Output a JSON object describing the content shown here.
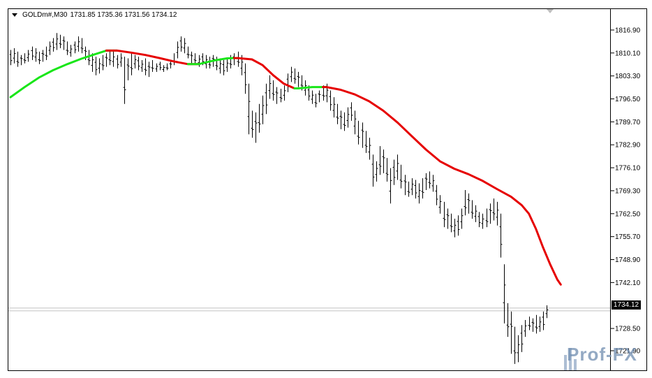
{
  "header": {
    "symbol": "GOLDm#,M30",
    "ohlc": "1731.85 1735.36 1731.56 1734.12"
  },
  "price_tag": "1734.12",
  "watermark": "Prof-FX",
  "colors": {
    "ma_up": "#19e619",
    "ma_down": "#e60000",
    "bars": "#000000",
    "current_line": "#c0c0c0",
    "background": "#ffffff"
  },
  "chart_data": {
    "type": "line",
    "title": "",
    "xlabel": "",
    "ylabel": "",
    "ylim": [
      1716.1,
      1823.1
    ],
    "yticks": [
      "1816.90",
      "1810.10",
      "1803.30",
      "1796.50",
      "1789.70",
      "1782.90",
      "1776.10",
      "1769.30",
      "1762.50",
      "1755.70",
      "1748.90",
      "1742.10",
      "1728.50",
      "1721.90"
    ],
    "current_price": 1734.12,
    "grid": false,
    "ohlc_bars": [
      {
        "h": 1811.0,
        "l": 1806.5
      },
      {
        "h": 1811.5,
        "l": 1807.0
      },
      {
        "h": 1810.5,
        "l": 1806.0
      },
      {
        "h": 1809.5,
        "l": 1806.5
      },
      {
        "h": 1810.0,
        "l": 1807.0
      },
      {
        "h": 1811.0,
        "l": 1807.5
      },
      {
        "h": 1812.0,
        "l": 1808.0
      },
      {
        "h": 1811.5,
        "l": 1807.5
      },
      {
        "h": 1810.5,
        "l": 1806.8
      },
      {
        "h": 1811.0,
        "l": 1807.5
      },
      {
        "h": 1812.0,
        "l": 1808.0
      },
      {
        "h": 1813.5,
        "l": 1809.5
      },
      {
        "h": 1814.5,
        "l": 1810.5
      },
      {
        "h": 1816.0,
        "l": 1811.0
      },
      {
        "h": 1815.5,
        "l": 1811.5
      },
      {
        "h": 1815.0,
        "l": 1811.0
      },
      {
        "h": 1813.5,
        "l": 1809.5
      },
      {
        "h": 1812.5,
        "l": 1809.0
      },
      {
        "h": 1813.5,
        "l": 1810.0
      },
      {
        "h": 1815.0,
        "l": 1810.5
      },
      {
        "h": 1814.5,
        "l": 1810.0
      },
      {
        "h": 1812.0,
        "l": 1808.0
      },
      {
        "h": 1811.0,
        "l": 1806.5
      },
      {
        "h": 1810.0,
        "l": 1804.5
      },
      {
        "h": 1809.0,
        "l": 1803.5
      },
      {
        "h": 1808.5,
        "l": 1804.0
      },
      {
        "h": 1809.5,
        "l": 1805.0
      },
      {
        "h": 1810.0,
        "l": 1806.0
      },
      {
        "h": 1811.0,
        "l": 1806.5
      },
      {
        "h": 1810.5,
        "l": 1806.0
      },
      {
        "h": 1809.5,
        "l": 1805.5
      },
      {
        "h": 1810.0,
        "l": 1806.0
      },
      {
        "h": 1809.0,
        "l": 1795.0
      },
      {
        "h": 1808.5,
        "l": 1802.0
      },
      {
        "h": 1810.0,
        "l": 1803.5
      },
      {
        "h": 1809.5,
        "l": 1805.5
      },
      {
        "h": 1809.0,
        "l": 1805.0
      },
      {
        "h": 1808.0,
        "l": 1804.5
      },
      {
        "h": 1808.5,
        "l": 1803.5
      },
      {
        "h": 1807.5,
        "l": 1803.0
      },
      {
        "h": 1808.0,
        "l": 1804.5
      },
      {
        "h": 1807.0,
        "l": 1804.5
      },
      {
        "h": 1807.5,
        "l": 1805.0
      },
      {
        "h": 1806.5,
        "l": 1804.5
      },
      {
        "h": 1807.0,
        "l": 1805.0
      },
      {
        "h": 1807.5,
        "l": 1805.5
      },
      {
        "h": 1810.0,
        "l": 1806.5
      },
      {
        "h": 1813.5,
        "l": 1808.5
      },
      {
        "h": 1815.0,
        "l": 1810.5
      },
      {
        "h": 1814.5,
        "l": 1810.0
      },
      {
        "h": 1812.0,
        "l": 1808.5
      },
      {
        "h": 1810.5,
        "l": 1807.0
      },
      {
        "h": 1810.0,
        "l": 1807.0
      },
      {
        "h": 1809.5,
        "l": 1806.0
      },
      {
        "h": 1810.0,
        "l": 1806.5
      },
      {
        "h": 1809.5,
        "l": 1805.5
      },
      {
        "h": 1809.0,
        "l": 1805.5
      },
      {
        "h": 1809.5,
        "l": 1806.0
      },
      {
        "h": 1809.0,
        "l": 1805.0
      },
      {
        "h": 1808.5,
        "l": 1804.0
      },
      {
        "h": 1808.0,
        "l": 1803.5
      },
      {
        "h": 1808.5,
        "l": 1804.5
      },
      {
        "h": 1809.5,
        "l": 1805.5
      },
      {
        "h": 1810.0,
        "l": 1806.5
      },
      {
        "h": 1810.5,
        "l": 1806.0
      },
      {
        "h": 1809.5,
        "l": 1803.5
      },
      {
        "h": 1807.0,
        "l": 1798.0
      },
      {
        "h": 1801.0,
        "l": 1786.0
      },
      {
        "h": 1793.0,
        "l": 1785.0
      },
      {
        "h": 1792.5,
        "l": 1783.5
      },
      {
        "h": 1795.0,
        "l": 1786.5
      },
      {
        "h": 1797.5,
        "l": 1789.0
      },
      {
        "h": 1801.0,
        "l": 1792.0
      },
      {
        "h": 1803.5,
        "l": 1796.5
      },
      {
        "h": 1802.0,
        "l": 1796.0
      },
      {
        "h": 1800.0,
        "l": 1795.0
      },
      {
        "h": 1799.5,
        "l": 1795.5
      },
      {
        "h": 1800.5,
        "l": 1796.0
      },
      {
        "h": 1804.0,
        "l": 1798.5
      },
      {
        "h": 1806.0,
        "l": 1801.5
      },
      {
        "h": 1805.5,
        "l": 1801.0
      },
      {
        "h": 1804.5,
        "l": 1800.0
      },
      {
        "h": 1803.5,
        "l": 1799.0
      },
      {
        "h": 1802.0,
        "l": 1797.5
      },
      {
        "h": 1800.5,
        "l": 1796.0
      },
      {
        "h": 1799.0,
        "l": 1795.0
      },
      {
        "h": 1798.0,
        "l": 1794.0
      },
      {
        "h": 1799.0,
        "l": 1795.5
      },
      {
        "h": 1800.5,
        "l": 1796.0
      },
      {
        "h": 1801.0,
        "l": 1795.5
      },
      {
        "h": 1799.0,
        "l": 1793.0
      },
      {
        "h": 1797.0,
        "l": 1791.0
      },
      {
        "h": 1795.0,
        "l": 1789.0
      },
      {
        "h": 1793.0,
        "l": 1787.5
      },
      {
        "h": 1792.5,
        "l": 1787.0
      },
      {
        "h": 1794.0,
        "l": 1788.0
      },
      {
        "h": 1795.5,
        "l": 1790.0
      },
      {
        "h": 1793.0,
        "l": 1786.0
      },
      {
        "h": 1790.0,
        "l": 1783.0
      },
      {
        "h": 1789.5,
        "l": 1782.0
      },
      {
        "h": 1787.0,
        "l": 1780.5
      },
      {
        "h": 1785.0,
        "l": 1778.5
      },
      {
        "h": 1780.0,
        "l": 1770.5
      },
      {
        "h": 1778.0,
        "l": 1772.0
      },
      {
        "h": 1782.5,
        "l": 1774.0
      },
      {
        "h": 1781.5,
        "l": 1774.5
      },
      {
        "h": 1779.0,
        "l": 1772.0
      },
      {
        "h": 1776.0,
        "l": 1765.5
      },
      {
        "h": 1778.5,
        "l": 1771.0
      },
      {
        "h": 1780.0,
        "l": 1772.5
      },
      {
        "h": 1777.0,
        "l": 1770.0
      },
      {
        "h": 1774.0,
        "l": 1768.0
      },
      {
        "h": 1772.0,
        "l": 1767.5
      },
      {
        "h": 1773.0,
        "l": 1768.0
      },
      {
        "h": 1772.5,
        "l": 1767.0
      },
      {
        "h": 1771.5,
        "l": 1765.5
      },
      {
        "h": 1773.0,
        "l": 1767.0
      },
      {
        "h": 1774.5,
        "l": 1769.5
      },
      {
        "h": 1775.0,
        "l": 1770.0
      },
      {
        "h": 1774.0,
        "l": 1769.0
      },
      {
        "h": 1771.0,
        "l": 1765.0
      },
      {
        "h": 1768.0,
        "l": 1762.5
      },
      {
        "h": 1766.0,
        "l": 1758.5
      },
      {
        "h": 1764.0,
        "l": 1758.0
      },
      {
        "h": 1762.5,
        "l": 1757.0
      },
      {
        "h": 1761.0,
        "l": 1755.5
      },
      {
        "h": 1762.0,
        "l": 1756.0
      },
      {
        "h": 1764.0,
        "l": 1758.0
      },
      {
        "h": 1769.5,
        "l": 1762.0
      },
      {
        "h": 1768.5,
        "l": 1762.5
      },
      {
        "h": 1766.5,
        "l": 1761.0
      },
      {
        "h": 1765.0,
        "l": 1760.0
      },
      {
        "h": 1763.0,
        "l": 1758.5
      },
      {
        "h": 1762.5,
        "l": 1758.0
      },
      {
        "h": 1764.0,
        "l": 1758.5
      },
      {
        "h": 1765.5,
        "l": 1759.5
      },
      {
        "h": 1767.0,
        "l": 1760.5
      },
      {
        "h": 1766.0,
        "l": 1759.0
      },
      {
        "h": 1762.5,
        "l": 1749.5
      },
      {
        "h": 1747.5,
        "l": 1730.0
      },
      {
        "h": 1736.0,
        "l": 1726.0
      },
      {
        "h": 1733.5,
        "l": 1721.0
      },
      {
        "h": 1729.0,
        "l": 1718.0
      },
      {
        "h": 1726.5,
        "l": 1718.5
      },
      {
        "h": 1729.5,
        "l": 1721.5
      },
      {
        "h": 1731.0,
        "l": 1726.0
      },
      {
        "h": 1732.0,
        "l": 1728.0
      },
      {
        "h": 1731.5,
        "l": 1727.5
      },
      {
        "h": 1732.5,
        "l": 1727.0
      },
      {
        "h": 1732.0,
        "l": 1727.5
      },
      {
        "h": 1733.5,
        "l": 1728.0
      },
      {
        "h": 1735.36,
        "l": 1731.56
      }
    ],
    "ma": {
      "name": "",
      "points": [
        {
          "i": 0,
          "y": 1797.0,
          "trend": "up"
        },
        {
          "i": 4,
          "y": 1800.0,
          "trend": "up"
        },
        {
          "i": 8,
          "y": 1802.8,
          "trend": "up"
        },
        {
          "i": 12,
          "y": 1805.0,
          "trend": "up"
        },
        {
          "i": 16,
          "y": 1806.8,
          "trend": "up"
        },
        {
          "i": 20,
          "y": 1808.4,
          "trend": "up"
        },
        {
          "i": 24,
          "y": 1809.8,
          "trend": "up"
        },
        {
          "i": 27,
          "y": 1810.8,
          "trend": "up"
        },
        {
          "i": 30,
          "y": 1810.8,
          "trend": "down"
        },
        {
          "i": 34,
          "y": 1810.2,
          "trend": "down"
        },
        {
          "i": 38,
          "y": 1809.5,
          "trend": "down"
        },
        {
          "i": 42,
          "y": 1808.6,
          "trend": "down"
        },
        {
          "i": 46,
          "y": 1807.6,
          "trend": "down"
        },
        {
          "i": 50,
          "y": 1806.8,
          "trend": "down"
        },
        {
          "i": 53,
          "y": 1806.8,
          "trend": "up"
        },
        {
          "i": 57,
          "y": 1807.8,
          "trend": "up"
        },
        {
          "i": 61,
          "y": 1808.5,
          "trend": "up"
        },
        {
          "i": 63,
          "y": 1808.6,
          "trend": "up"
        },
        {
          "i": 64,
          "y": 1808.6,
          "trend": "down"
        },
        {
          "i": 68,
          "y": 1808.2,
          "trend": "down"
        },
        {
          "i": 71,
          "y": 1806.5,
          "trend": "down"
        },
        {
          "i": 74,
          "y": 1803.5,
          "trend": "down"
        },
        {
          "i": 77,
          "y": 1801.0,
          "trend": "down"
        },
        {
          "i": 80,
          "y": 1799.6,
          "trend": "down"
        },
        {
          "i": 81,
          "y": 1799.6,
          "trend": "up"
        },
        {
          "i": 85,
          "y": 1800.0,
          "trend": "up"
        },
        {
          "i": 88,
          "y": 1800.0,
          "trend": "up"
        },
        {
          "i": 89,
          "y": 1800.0,
          "trend": "down"
        },
        {
          "i": 93,
          "y": 1799.2,
          "trend": "down"
        },
        {
          "i": 97,
          "y": 1797.8,
          "trend": "down"
        },
        {
          "i": 101,
          "y": 1795.8,
          "trend": "down"
        },
        {
          "i": 105,
          "y": 1793.0,
          "trend": "down"
        },
        {
          "i": 109,
          "y": 1789.5,
          "trend": "down"
        },
        {
          "i": 113,
          "y": 1785.5,
          "trend": "down"
        },
        {
          "i": 117,
          "y": 1781.5,
          "trend": "down"
        },
        {
          "i": 121,
          "y": 1778.0,
          "trend": "down"
        },
        {
          "i": 125,
          "y": 1775.8,
          "trend": "down"
        },
        {
          "i": 129,
          "y": 1774.2,
          "trend": "down"
        },
        {
          "i": 133,
          "y": 1772.2,
          "trend": "down"
        },
        {
          "i": 137,
          "y": 1769.8,
          "trend": "down"
        },
        {
          "i": 141,
          "y": 1767.5,
          "trend": "down"
        },
        {
          "i": 144,
          "y": 1765.0,
          "trend": "down"
        },
        {
          "i": 146,
          "y": 1762.5,
          "trend": "down"
        },
        {
          "i": 148,
          "y": 1758.0,
          "trend": "down"
        },
        {
          "i": 150,
          "y": 1752.5,
          "trend": "down"
        },
        {
          "i": 152,
          "y": 1747.5,
          "trend": "down"
        },
        {
          "i": 154,
          "y": 1743.0,
          "trend": "down"
        },
        {
          "i": 155,
          "y": 1741.5,
          "trend": "down"
        }
      ]
    }
  }
}
